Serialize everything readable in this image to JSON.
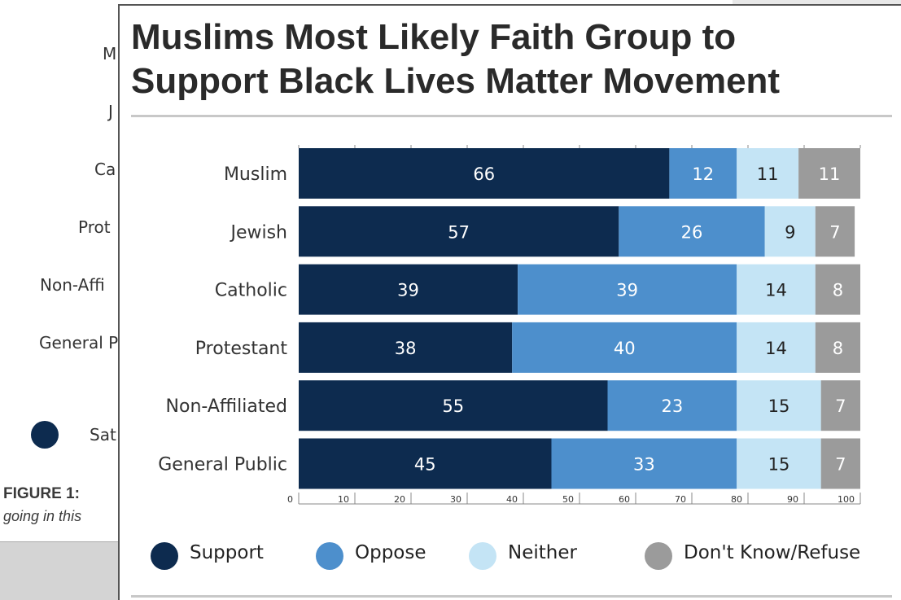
{
  "background_doc": {
    "labels": [
      "M",
      "J",
      "Ca",
      "Prot",
      "Non-Affi",
      "General P"
    ],
    "legend_label": "Sat",
    "figure_label": "FIGURE 1:",
    "caption": "going in this"
  },
  "colors": {
    "support": "#0d2b4f",
    "oppose": "#4d8fcc",
    "neither": "#c4e4f5",
    "dont_know": "#9b9b9b"
  },
  "chart_data": {
    "type": "bar",
    "orientation": "horizontal",
    "stacked": true,
    "title": "Muslims Most Likely Faith Group to Support Black Lives Matter Movement",
    "title_lines": [
      "Muslims Most Likely Faith Group to",
      "Support Black Lives Matter Movement"
    ],
    "categories": [
      "Muslim",
      "Jewish",
      "Catholic",
      "Protestant",
      "Non-Affiliated",
      "General Public"
    ],
    "series": [
      {
        "name": "Support",
        "values": [
          66,
          57,
          39,
          38,
          55,
          45
        ]
      },
      {
        "name": "Oppose",
        "values": [
          12,
          26,
          39,
          40,
          23,
          33
        ]
      },
      {
        "name": "Neither",
        "values": [
          11,
          9,
          14,
          14,
          15,
          15
        ]
      },
      {
        "name": "Don't Know/Refuse",
        "values": [
          11,
          7,
          8,
          8,
          7,
          7
        ]
      }
    ],
    "xlim": [
      0,
      100
    ],
    "xticks": [
      0,
      10,
      20,
      30,
      40,
      50,
      60,
      70,
      80,
      90,
      100
    ],
    "legend_position": "bottom",
    "grid": false
  }
}
